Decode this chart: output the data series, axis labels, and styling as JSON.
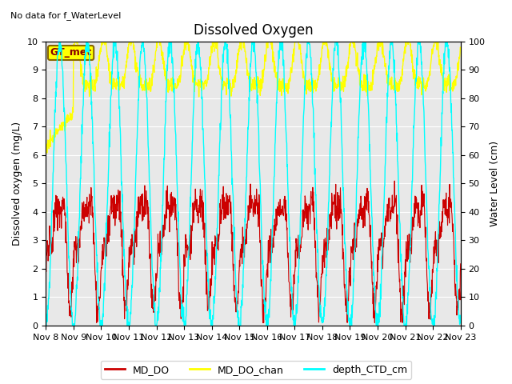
{
  "title": "Dissolved Oxygen",
  "subtitle": "No data for f_WaterLevel",
  "ylabel_left": "Dissolved oxygen (mg/L)",
  "ylabel_right": "Water Level (cm)",
  "ylim_left": [
    0,
    10.0
  ],
  "ylim_right": [
    0,
    100
  ],
  "yticks_left": [
    0.0,
    1.0,
    2.0,
    3.0,
    4.0,
    5.0,
    6.0,
    7.0,
    8.0,
    9.0,
    10.0
  ],
  "yticks_right": [
    0,
    10,
    20,
    30,
    40,
    50,
    60,
    70,
    80,
    90,
    100
  ],
  "xtick_labels": [
    "Nov 8",
    "Nov 9",
    "Nov 10",
    "Nov 11",
    "Nov 12",
    "Nov 13",
    "Nov 14",
    "Nov 15",
    "Nov 16",
    "Nov 17",
    "Nov 18",
    "Nov 19",
    "Nov 20",
    "Nov 21",
    "Nov 22",
    "Nov 23"
  ],
  "color_MD_DO": "#cc0000",
  "color_MD_DO_chan": "#ffff00",
  "color_depth_CTD_cm": "#00ffff",
  "legend_labels": [
    "MD_DO",
    "MD_DO_chan",
    "depth_CTD_cm"
  ],
  "annotation_text": "GT_met",
  "annotation_bg": "#ffff00",
  "annotation_edge": "#886600",
  "annotation_text_color": "#880000",
  "background_gray": "#e8e8e8",
  "grid_color": "#ffffff",
  "title_fontsize": 12,
  "label_fontsize": 9,
  "tick_fontsize": 8
}
